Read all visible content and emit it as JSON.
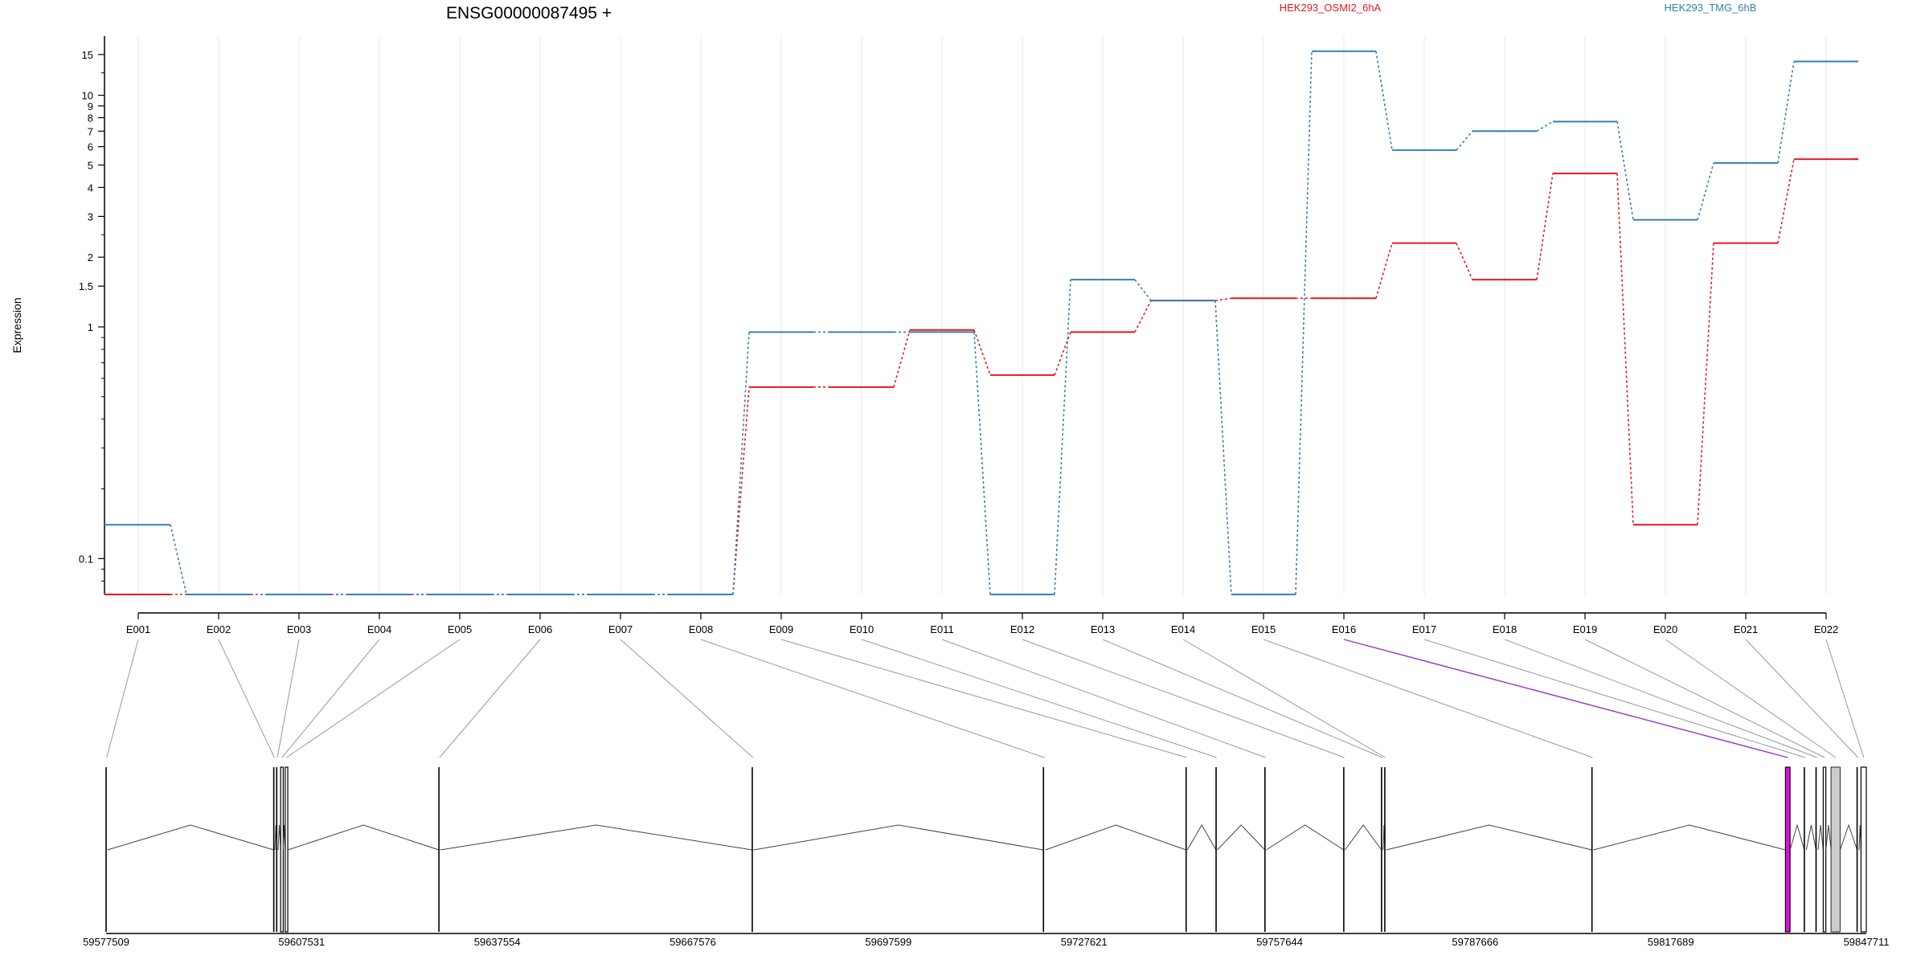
{
  "chart_data": {
    "type": "line",
    "title": "ENSG00000087495 +",
    "ylabel": "Expression",
    "y_scale": "log",
    "ylim": [
      0.07,
      18
    ],
    "y_ticks": [
      {
        "v": 0.1,
        "label": "0.1"
      },
      {
        "v": 1,
        "label": "1"
      },
      {
        "v": 1.5,
        "label": "1.5"
      },
      {
        "v": 2,
        "label": "2"
      },
      {
        "v": 3,
        "label": "3"
      },
      {
        "v": 4,
        "label": "4"
      },
      {
        "v": 5,
        "label": "5"
      },
      {
        "v": 6,
        "label": "6"
      },
      {
        "v": 7,
        "label": "7"
      },
      {
        "v": 8,
        "label": "8"
      },
      {
        "v": 9,
        "label": "9"
      },
      {
        "v": 10,
        "label": "10"
      },
      {
        "v": 15,
        "label": "15"
      }
    ],
    "categories": [
      "E001",
      "E002",
      "E003",
      "E004",
      "E005",
      "E006",
      "E007",
      "E008",
      "E009",
      "E010",
      "E011",
      "E012",
      "E013",
      "E014",
      "E015",
      "E016",
      "E017",
      "E018",
      "E019",
      "E020",
      "E021",
      "E022"
    ],
    "series": [
      {
        "name": "HEK293_OSMI2_6hA",
        "color": "#e41a1c",
        "values": [
          0.07,
          0.07,
          0.07,
          0.07,
          0.07,
          0.07,
          0.07,
          0.07,
          0.55,
          0.55,
          0.97,
          0.62,
          0.95,
          1.3,
          1.33,
          1.33,
          2.3,
          1.6,
          4.6,
          0.14,
          2.3,
          5.3
        ]
      },
      {
        "name": "HEK293_TMG_6hB",
        "color": "#377eb8",
        "values": [
          0.14,
          0.07,
          0.07,
          0.07,
          0.07,
          0.07,
          0.07,
          0.07,
          0.95,
          0.95,
          0.95,
          0.07,
          1.6,
          1.3,
          0.07,
          15.5,
          5.8,
          7.0,
          7.7,
          2.9,
          5.1,
          14.0
        ]
      }
    ],
    "gene_track": {
      "coordinate_labels": [
        "59577509",
        "59607531",
        "59637554",
        "59667576",
        "59697599",
        "59727621",
        "59757644",
        "59787666",
        "59817689",
        "59847711"
      ],
      "coordinate_values": [
        59577509,
        59607531,
        59637554,
        59667576,
        59697599,
        59727621,
        59757644,
        59787666,
        59817689,
        59847711
      ],
      "exons": [
        {
          "id": "E001",
          "start": 59577509,
          "end": 59577600
        },
        {
          "id": "E002",
          "start": 59603250,
          "end": 59603400
        },
        {
          "id": "E003",
          "start": 59603700,
          "end": 59603900
        },
        {
          "id": "E004",
          "start": 59604300,
          "end": 59604700
        },
        {
          "id": "E005",
          "start": 59605000,
          "end": 59605400
        },
        {
          "id": "E006",
          "start": 59628600,
          "end": 59628800
        },
        {
          "id": "E007",
          "start": 59676700,
          "end": 59676900
        },
        {
          "id": "E008",
          "start": 59721400,
          "end": 59721700
        },
        {
          "id": "E009",
          "start": 59743300,
          "end": 59743450
        },
        {
          "id": "E010",
          "start": 59747900,
          "end": 59748050
        },
        {
          "id": "E011",
          "start": 59755400,
          "end": 59755600
        },
        {
          "id": "E012",
          "start": 59767500,
          "end": 59767650
        },
        {
          "id": "E013",
          "start": 59773300,
          "end": 59773550
        },
        {
          "id": "E014",
          "start": 59773800,
          "end": 59774000
        },
        {
          "id": "E015",
          "start": 59805600,
          "end": 59805800
        },
        {
          "id": "E016",
          "start": 59835300,
          "end": 59836000,
          "highlight": true
        },
        {
          "id": "E017",
          "start": 59838200,
          "end": 59838500
        },
        {
          "id": "E018",
          "start": 59840000,
          "end": 59840300
        },
        {
          "id": "E019",
          "start": 59841100,
          "end": 59841500
        },
        {
          "id": "E020",
          "start": 59842300,
          "end": 59843700,
          "filled": true
        },
        {
          "id": "E021",
          "start": 59846300,
          "end": 59846600
        },
        {
          "id": "E022",
          "start": 59846900,
          "end": 59847711
        }
      ]
    }
  },
  "colors": {
    "highlight_exon": "#e010e0",
    "highlight_line": "#9b30c8",
    "filled_exon": "#cccccc",
    "connector": "#999999",
    "grid": "#e8e8e8"
  }
}
